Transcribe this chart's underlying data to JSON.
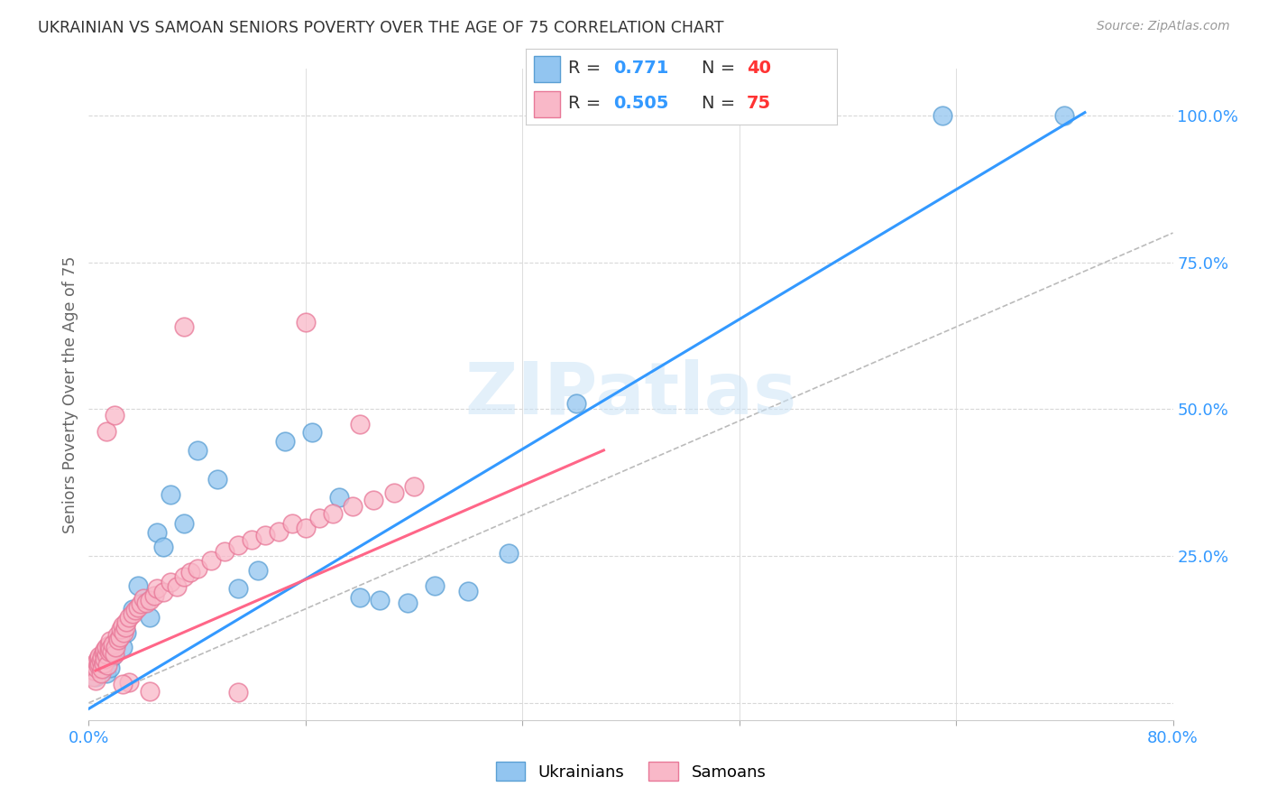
{
  "title": "UKRAINIAN VS SAMOAN SENIORS POVERTY OVER THE AGE OF 75 CORRELATION CHART",
  "source": "Source: ZipAtlas.com",
  "ylabel": "Seniors Poverty Over the Age of 75",
  "xlim": [
    0.0,
    0.8
  ],
  "ylim": [
    -0.03,
    1.08
  ],
  "xticks": [
    0.0,
    0.16,
    0.32,
    0.48,
    0.64,
    0.8
  ],
  "xticklabels": [
    "0.0%",
    "",
    "",
    "",
    "",
    "80.0%"
  ],
  "yticks": [
    0.0,
    0.25,
    0.5,
    0.75,
    1.0
  ],
  "yticklabels": [
    "",
    "25.0%",
    "50.0%",
    "75.0%",
    "100.0%"
  ],
  "ukrainian_color": "#92c5f0",
  "samoan_color": "#f9b8c8",
  "ukrainian_edge_color": "#5a9fd4",
  "samoan_edge_color": "#e87898",
  "watermark": "ZIPatlas",
  "grid_color": "#d8d8d8",
  "axis_label_color": "#3399ff",
  "blue_line_color": "#3399ff",
  "pink_line_color": "#ff6688",
  "dash_line_color": "#bbbbbb",
  "ukrainian_R": "0.771",
  "ukrainian_N": "40",
  "samoan_R": "0.505",
  "samoan_N": "75",
  "blue_line_x": [
    0.0,
    0.735
  ],
  "blue_line_y": [
    -0.01,
    1.005
  ],
  "pink_line_x": [
    0.005,
    0.38
  ],
  "pink_line_y": [
    0.055,
    0.43
  ],
  "dash_line_x": [
    0.0,
    0.8
  ],
  "dash_line_y": [
    0.0,
    0.8
  ],
  "ukrainian_scatter_x": [
    0.005,
    0.007,
    0.009,
    0.01,
    0.011,
    0.012,
    0.013,
    0.014,
    0.015,
    0.016,
    0.017,
    0.018,
    0.02,
    0.022,
    0.025,
    0.028,
    0.032,
    0.036,
    0.04,
    0.045,
    0.05,
    0.055,
    0.06,
    0.07,
    0.08,
    0.095,
    0.11,
    0.125,
    0.145,
    0.165,
    0.185,
    0.2,
    0.215,
    0.235,
    0.255,
    0.28,
    0.31,
    0.36,
    0.63,
    0.72
  ],
  "ukrainian_scatter_y": [
    0.045,
    0.06,
    0.07,
    0.055,
    0.065,
    0.08,
    0.05,
    0.075,
    0.085,
    0.06,
    0.09,
    0.08,
    0.1,
    0.11,
    0.095,
    0.12,
    0.16,
    0.2,
    0.17,
    0.145,
    0.29,
    0.265,
    0.355,
    0.305,
    0.43,
    0.38,
    0.195,
    0.225,
    0.445,
    0.46,
    0.35,
    0.18,
    0.175,
    0.17,
    0.2,
    0.19,
    0.255,
    0.51,
    1.0,
    1.0
  ],
  "samoan_scatter_x": [
    0.003,
    0.004,
    0.005,
    0.006,
    0.006,
    0.007,
    0.007,
    0.008,
    0.008,
    0.009,
    0.009,
    0.01,
    0.01,
    0.011,
    0.011,
    0.012,
    0.012,
    0.013,
    0.013,
    0.014,
    0.015,
    0.015,
    0.016,
    0.016,
    0.017,
    0.018,
    0.019,
    0.02,
    0.021,
    0.022,
    0.023,
    0.024,
    0.025,
    0.026,
    0.027,
    0.028,
    0.03,
    0.032,
    0.034,
    0.036,
    0.038,
    0.04,
    0.042,
    0.045,
    0.048,
    0.05,
    0.055,
    0.06,
    0.065,
    0.07,
    0.075,
    0.08,
    0.09,
    0.1,
    0.11,
    0.12,
    0.13,
    0.14,
    0.15,
    0.16,
    0.17,
    0.18,
    0.195,
    0.21,
    0.225,
    0.24,
    0.013,
    0.019,
    0.03,
    0.11,
    0.16,
    0.2,
    0.025,
    0.045,
    0.07
  ],
  "samoan_scatter_y": [
    0.045,
    0.055,
    0.038,
    0.06,
    0.07,
    0.065,
    0.075,
    0.068,
    0.08,
    0.05,
    0.072,
    0.058,
    0.078,
    0.068,
    0.085,
    0.075,
    0.09,
    0.082,
    0.095,
    0.065,
    0.088,
    0.098,
    0.105,
    0.092,
    0.088,
    0.1,
    0.082,
    0.095,
    0.115,
    0.108,
    0.112,
    0.125,
    0.132,
    0.12,
    0.128,
    0.138,
    0.145,
    0.152,
    0.158,
    0.162,
    0.168,
    0.178,
    0.17,
    0.175,
    0.182,
    0.195,
    0.188,
    0.205,
    0.198,
    0.215,
    0.222,
    0.228,
    0.242,
    0.258,
    0.268,
    0.278,
    0.285,
    0.292,
    0.305,
    0.298,
    0.315,
    0.322,
    0.335,
    0.345,
    0.358,
    0.368,
    0.462,
    0.49,
    0.035,
    0.018,
    0.648,
    0.475,
    0.032,
    0.02,
    0.64
  ]
}
